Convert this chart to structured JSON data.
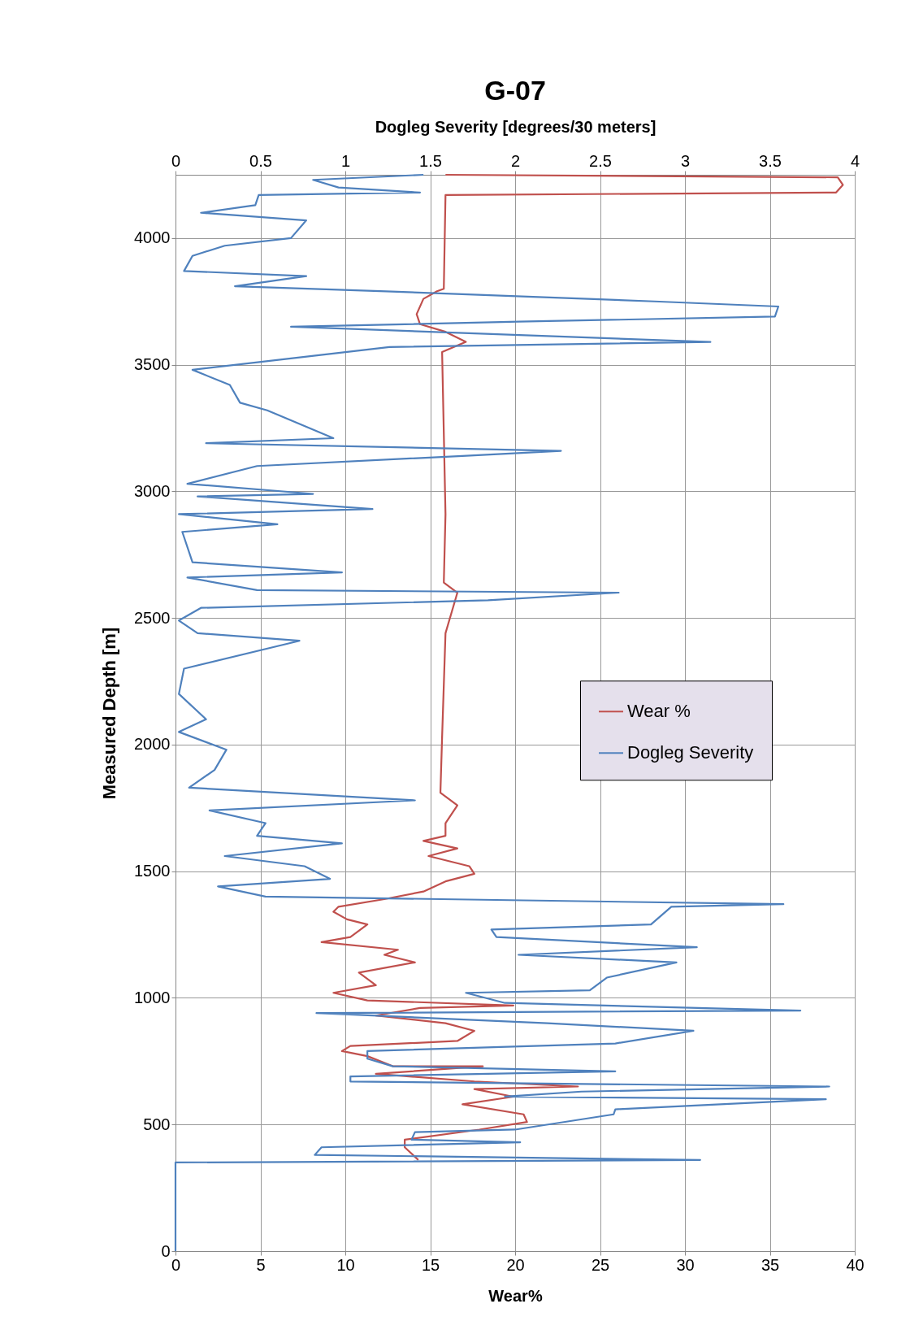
{
  "chart_data": {
    "type": "line",
    "title": "G-07",
    "xlabel": "Wear%",
    "x2label": "Dogleg Severity [degrees/30 meters]",
    "ylabel": "Measured Depth [m]",
    "xlim": [
      0,
      40
    ],
    "xticks": [
      0,
      5,
      10,
      15,
      20,
      25,
      30,
      35,
      40
    ],
    "x2lim": [
      0,
      4
    ],
    "x2ticks": [
      0,
      0.5,
      1,
      1.5,
      2,
      2.5,
      3,
      3.5,
      4
    ],
    "ylim": [
      0,
      4250
    ],
    "yticks": [
      0,
      500,
      1000,
      1500,
      2000,
      2500,
      3000,
      3500,
      4000
    ],
    "grid": true,
    "legend": "right",
    "marker": "none",
    "line_style": "solid",
    "series": [
      {
        "name": "Wear %",
        "color": "#c0504d",
        "x": [
          14.3,
          13.5,
          13.5,
          17.9,
          20.7,
          20.5,
          16.9,
          19.9,
          17.6,
          23.7,
          17.6,
          11.8,
          18.1,
          12.8,
          11.3,
          9.8,
          10.3,
          16.6,
          17.6,
          15.9,
          11.8,
          14.4,
          19.9,
          11.3,
          9.3,
          11.8,
          10.8,
          14.1,
          12.3,
          13.1,
          8.6,
          10.3,
          11.3,
          10.1,
          9.3,
          9.6,
          12.3,
          14.6,
          15.9,
          17.6,
          17.3,
          14.9,
          16.6,
          14.6,
          15.9,
          15.9,
          16.6,
          15.6,
          15.7,
          15.9,
          16.6,
          15.8,
          15.9,
          15.7,
          17.1,
          15.9,
          14.4,
          14.2,
          14.6,
          15.4,
          15.8,
          15.9,
          38.9,
          39.3,
          39.0,
          15.9
        ],
        "values": [
          360,
          410,
          440,
          480,
          510,
          540,
          580,
          610,
          640,
          650,
          670,
          700,
          730,
          730,
          770,
          790,
          810,
          830,
          870,
          900,
          930,
          960,
          970,
          990,
          1020,
          1050,
          1100,
          1140,
          1170,
          1190,
          1220,
          1240,
          1290,
          1310,
          1340,
          1360,
          1390,
          1420,
          1460,
          1490,
          1520,
          1560,
          1590,
          1620,
          1640,
          1690,
          1760,
          1810,
          2030,
          2440,
          2600,
          2640,
          2910,
          3550,
          3590,
          3630,
          3660,
          3700,
          3760,
          3790,
          3800,
          4170,
          4180,
          4210,
          4240,
          4250
        ]
      },
      {
        "name": "Dogleg Severity",
        "color": "#4f81bd",
        "axis": "x2",
        "x": [
          0,
          0,
          3.09,
          0.82,
          0.86,
          2.03,
          1.39,
          1.41,
          2.0,
          2.58,
          2.59,
          3.83,
          1.94,
          2.39,
          3.85,
          1.03,
          1.03,
          2.59,
          1.28,
          1.13,
          1.13,
          2.59,
          3.05,
          2.19,
          0.83,
          3.68,
          1.94,
          1.71,
          2.44,
          2.54,
          2.95,
          2.02,
          3.07,
          1.89,
          1.86,
          2.8,
          2.92,
          3.58,
          0.53,
          0.25,
          0.91,
          0.76,
          0.29,
          0.98,
          0.48,
          0.53,
          0.2,
          1.41,
          0.08,
          0.23,
          0.3,
          0.02,
          0.18,
          0.02,
          0.05,
          0.73,
          0.13,
          0.02,
          0.15,
          1.84,
          2.61,
          0.48,
          0.07,
          0.98,
          0.1,
          0.04,
          0.6,
          0.02,
          1.16,
          0.13,
          0.81,
          0.07,
          0.48,
          1.69,
          2.27,
          0.18,
          0.93,
          0.54,
          0.38,
          0.32,
          0.1,
          1.26,
          3.15,
          0.68,
          2.02,
          3.53,
          3.55,
          2.82,
          1.24,
          0.35,
          0.77,
          0.05,
          0.1,
          0.29,
          0.68,
          0.77,
          0.15,
          0.47,
          0.49,
          1.44,
          0.96,
          0.81,
          1.46
        ],
        "values": [
          0,
          350,
          360,
          380,
          410,
          430,
          440,
          470,
          480,
          540,
          560,
          600,
          610,
          630,
          650,
          670,
          690,
          710,
          730,
          760,
          790,
          820,
          870,
          900,
          940,
          950,
          980,
          1020,
          1030,
          1080,
          1140,
          1170,
          1200,
          1240,
          1270,
          1290,
          1360,
          1370,
          1400,
          1440,
          1470,
          1520,
          1560,
          1610,
          1640,
          1690,
          1740,
          1780,
          1830,
          1900,
          1980,
          2050,
          2100,
          2200,
          2300,
          2410,
          2440,
          2490,
          2540,
          2570,
          2600,
          2610,
          2660,
          2680,
          2720,
          2840,
          2870,
          2910,
          2930,
          2980,
          2990,
          3030,
          3100,
          3140,
          3160,
          3190,
          3210,
          3320,
          3350,
          3420,
          3480,
          3570,
          3590,
          3650,
          3670,
          3690,
          3730,
          3750,
          3790,
          3810,
          3850,
          3870,
          3930,
          3970,
          4000,
          4070,
          4100,
          4130,
          4170,
          4180,
          4200,
          4230,
          4250
        ]
      }
    ]
  }
}
